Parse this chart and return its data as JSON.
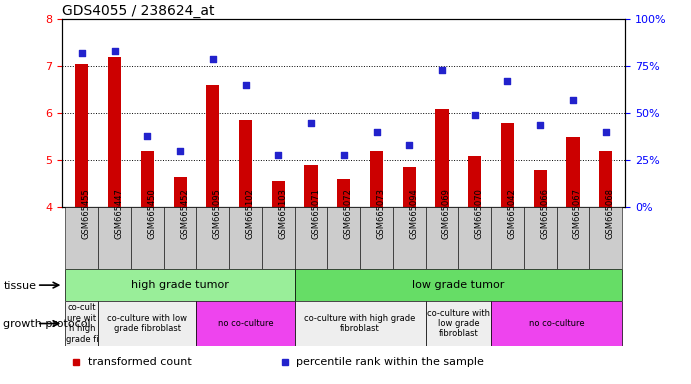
{
  "title": "GDS4055 / 238624_at",
  "samples": [
    "GSM665455",
    "GSM665447",
    "GSM665450",
    "GSM665452",
    "GSM665095",
    "GSM665102",
    "GSM665103",
    "GSM665071",
    "GSM665072",
    "GSM665073",
    "GSM665094",
    "GSM665069",
    "GSM665070",
    "GSM665042",
    "GSM665066",
    "GSM665067",
    "GSM665068"
  ],
  "transformed_count": [
    7.05,
    7.2,
    5.2,
    4.65,
    6.6,
    5.85,
    4.55,
    4.9,
    4.6,
    5.2,
    4.85,
    6.1,
    5.1,
    5.8,
    4.8,
    5.5,
    5.2
  ],
  "percentile_rank": [
    82,
    83,
    38,
    30,
    79,
    65,
    28,
    45,
    28,
    40,
    33,
    73,
    49,
    67,
    44,
    57,
    40
  ],
  "ylim_left": [
    4,
    8
  ],
  "ylim_right": [
    0,
    100
  ],
  "yticks_left": [
    4,
    5,
    6,
    7,
    8
  ],
  "yticks_right": [
    0,
    25,
    50,
    75,
    100
  ],
  "bar_color": "#cc0000",
  "dot_color": "#2222cc",
  "tissue_row": [
    {
      "label": "high grade tumor",
      "start": 0,
      "end": 7,
      "color": "#99ee99"
    },
    {
      "label": "low grade tumor",
      "start": 7,
      "end": 17,
      "color": "#66dd66"
    }
  ],
  "growth_protocol_row": [
    {
      "label": "co-cult\nure wit\nh high\ngrade fi",
      "start": 0,
      "end": 1,
      "color": "#eeeeee"
    },
    {
      "label": "co-culture with low\ngrade fibroblast",
      "start": 1,
      "end": 4,
      "color": "#eeeeee"
    },
    {
      "label": "no co-culture",
      "start": 4,
      "end": 7,
      "color": "#ee44ee"
    },
    {
      "label": "co-culture with high grade\nfibroblast",
      "start": 7,
      "end": 11,
      "color": "#eeeeee"
    },
    {
      "label": "co-culture with\nlow grade\nfibroblast",
      "start": 11,
      "end": 13,
      "color": "#eeeeee"
    },
    {
      "label": "no co-culture",
      "start": 13,
      "end": 17,
      "color": "#ee44ee"
    }
  ],
  "legend_items": [
    {
      "label": "transformed count",
      "color": "#cc0000"
    },
    {
      "label": "percentile rank within the sample",
      "color": "#2222cc"
    }
  ],
  "xlabel_bg": "#cccccc"
}
